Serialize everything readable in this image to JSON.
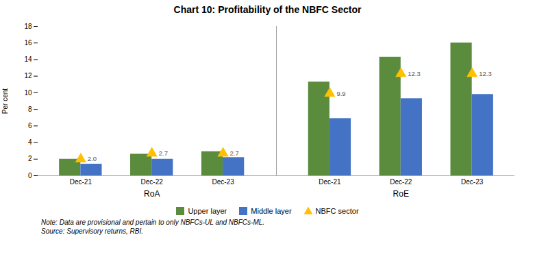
{
  "chart_data": {
    "type": "bar",
    "title": "Chart 10: Profitability of the NBFC Sector",
    "ylabel": "Per cent",
    "categories": [
      "Dec-21",
      "Dec-22",
      "Dec-23",
      "Dec-21",
      "Dec-22",
      "Dec-23"
    ],
    "annotations": [
      "RoA",
      "RoE"
    ],
    "series": [
      {
        "name": "Upper layer",
        "color": "#5B8C3E",
        "values": [
          2.0,
          2.6,
          2.9,
          11.3,
          14.3,
          16.0
        ]
      },
      {
        "name": "Middle layer",
        "color": "#4472C4",
        "values": [
          1.4,
          2.0,
          2.2,
          6.9,
          9.3,
          9.8
        ]
      },
      {
        "name": "NBFC sector",
        "type": "scatter",
        "marker": "triangle",
        "color": "#FFC000",
        "values": [
          2.0,
          2.7,
          2.7,
          9.9,
          12.3,
          12.3
        ],
        "value_labels": [
          "2.0",
          "2.7",
          "2.7",
          "9.9",
          "12.3",
          "12.3"
        ],
        "data_labels": true
      }
    ],
    "ylim": [
      0,
      18
    ],
    "yticks": [
      0,
      2,
      4,
      6,
      8,
      10,
      12,
      14,
      16,
      18
    ],
    "grid": false,
    "legend": "bottom",
    "note": "Note: Data are provisional and pertain to only NBFCs-UL and NBFCs-ML.",
    "source": "Source: Supervisory returns, RBI."
  }
}
